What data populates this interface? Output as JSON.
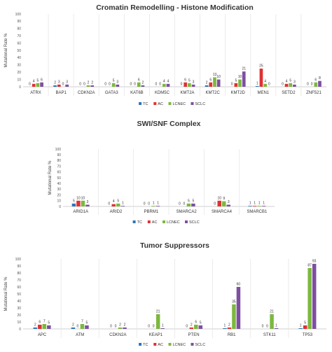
{
  "colors": {
    "TC": "#2e75b6",
    "AC": "#e03131",
    "LCNEC": "#7cb83e",
    "SCLC": "#7e4fa0"
  },
  "chart_data": [
    {
      "type": "bar",
      "title": "Cromatin Remodelling - Histone Modification",
      "ylabel": "Mutational Rate %",
      "ylim": [
        0,
        100
      ],
      "yticks": [
        0,
        10,
        20,
        30,
        40,
        50,
        60,
        70,
        80,
        90,
        100
      ],
      "grid": false,
      "legend": "bottom",
      "categories": [
        "ATRX",
        "BAP1",
        "CDKN2A",
        "GATA3",
        "KAT6B",
        "KDM5C",
        "KMT2A",
        "KMT2C",
        "KMT2D",
        "MEN1",
        "SETD2",
        "ZNF521"
      ],
      "series": [
        {
          "name": "TC",
          "values": [
            0,
            2,
            0,
            0,
            0,
            0,
            0,
            2,
            0,
            1,
            0,
            0
          ]
        },
        {
          "name": "AC",
          "values": [
            4,
            3,
            0,
            0,
            0,
            0,
            6,
            6,
            5,
            25,
            4,
            0
          ]
        },
        {
          "name": "LCNEC",
          "values": [
            5,
            0,
            2,
            5,
            6,
            4,
            5,
            13,
            10,
            4,
            5,
            6
          ]
        },
        {
          "name": "SCLC",
          "values": [
            6,
            3,
            2,
            3,
            2,
            4,
            3,
            10,
            21,
            0,
            3,
            8
          ]
        }
      ]
    },
    {
      "type": "bar",
      "title": "SWI/SNF Complex",
      "ylabel": "Mutational Rate %",
      "ylim": [
        0,
        100
      ],
      "yticks": [
        0,
        10,
        20,
        30,
        40,
        50,
        60,
        70,
        80,
        90,
        100
      ],
      "grid": false,
      "legend": "bottom",
      "categories": [
        "ARID1A",
        "ARID2",
        "PBRM1",
        "SMARCA2",
        "SMARCA4",
        "SMARCB1"
      ],
      "series": [
        {
          "name": "TC",
          "values": [
            5,
            0,
            0,
            0,
            0,
            1
          ]
        },
        {
          "name": "AC",
          "values": [
            10,
            4,
            0,
            0,
            10,
            1
          ]
        },
        {
          "name": "LCNEC",
          "values": [
            10,
            5,
            1,
            5,
            9,
            1
          ]
        },
        {
          "name": "SCLC",
          "values": [
            3,
            1,
            1,
            5,
            3,
            1
          ]
        }
      ]
    },
    {
      "type": "bar",
      "title": "Tumor Suppressors",
      "ylabel": "Mutational Rate %",
      "ylim": [
        0,
        100
      ],
      "yticks": [
        0,
        10,
        20,
        30,
        40,
        50,
        60,
        70,
        80,
        90,
        100
      ],
      "grid": false,
      "legend": "bottom",
      "categories": [
        "APC",
        "ATM",
        "CDKN2A",
        "KEAP1",
        "PTEN",
        "RB1",
        "STK11",
        "TP53"
      ],
      "series": [
        {
          "name": "TC",
          "values": [
            2,
            2,
            0,
            0,
            0,
            1,
            0,
            1
          ]
        },
        {
          "name": "AC",
          "values": [
            6,
            0,
            0,
            0,
            2,
            2,
            0,
            5
          ]
        },
        {
          "name": "LCNEC",
          "values": [
            7,
            7,
            2,
            21,
            6,
            35,
            21,
            87
          ]
        },
        {
          "name": "SCLC",
          "values": [
            5,
            5,
            2,
            1,
            5,
            60,
            1,
            93
          ]
        }
      ]
    }
  ]
}
